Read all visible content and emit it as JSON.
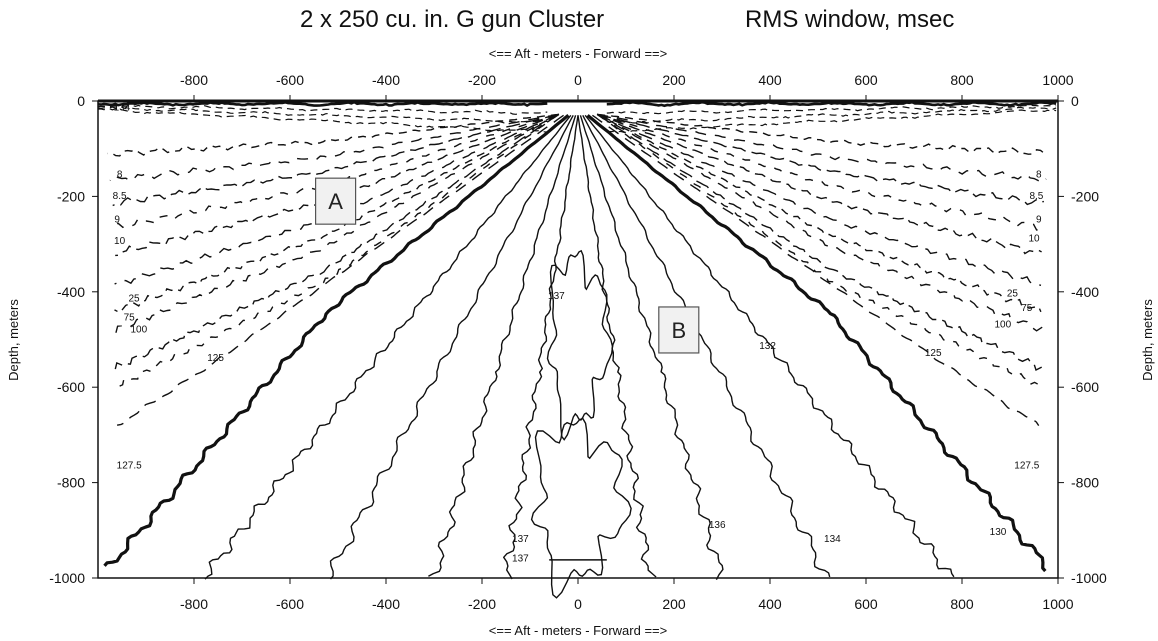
{
  "chart_data": {
    "type": "contour",
    "title": "2 x 250 cu. in.  G gun Cluster",
    "subtitle": "RMS window, msec",
    "xlabel": "<==  Aft  - meters -  Forward  ==>",
    "ylabel": "Depth, meters",
    "xlim": [
      -1000,
      1000
    ],
    "ylim": [
      -1000,
      0
    ],
    "xticks": [
      "-800",
      "-600",
      "-400",
      "-200",
      "0",
      "200",
      "400",
      "600",
      "800",
      "1000"
    ],
    "yticks": [
      "0",
      "-200",
      "-400",
      "-600",
      "-800",
      "-1000"
    ],
    "grid": false,
    "contour_labels": [
      {
        "text": "134",
        "x": -950,
        "y": -20
      },
      {
        "text": "8",
        "x": -955,
        "y": -160
      },
      {
        "text": "8.5",
        "x": -955,
        "y": -205
      },
      {
        "text": "9",
        "x": -960,
        "y": -255
      },
      {
        "text": "10",
        "x": -955,
        "y": -300
      },
      {
        "text": "25",
        "x": -925,
        "y": -420
      },
      {
        "text": "75",
        "x": -935,
        "y": -460
      },
      {
        "text": "100",
        "x": -915,
        "y": -485
      },
      {
        "text": "125",
        "x": -755,
        "y": -545
      },
      {
        "text": "127.5",
        "x": -935,
        "y": -770
      },
      {
        "text": "137",
        "x": -45,
        "y": -415
      },
      {
        "text": "137",
        "x": -120,
        "y": -925
      },
      {
        "text": "137",
        "x": -120,
        "y": -965
      },
      {
        "text": "132",
        "x": 395,
        "y": -520
      },
      {
        "text": "136",
        "x": 290,
        "y": -895
      },
      {
        "text": "134",
        "x": 530,
        "y": -925
      },
      {
        "text": "130",
        "x": 875,
        "y": -910
      },
      {
        "text": "8",
        "x": 960,
        "y": -160
      },
      {
        "text": "8.5",
        "x": 955,
        "y": -205
      },
      {
        "text": "9",
        "x": 960,
        "y": -255
      },
      {
        "text": "10",
        "x": 950,
        "y": -295
      },
      {
        "text": "25",
        "x": 905,
        "y": -410
      },
      {
        "text": "75",
        "x": 935,
        "y": -440
      },
      {
        "text": "100",
        "x": 885,
        "y": -475
      },
      {
        "text": "125",
        "x": 740,
        "y": -535
      },
      {
        "text": "127.5",
        "x": 935,
        "y": -770
      }
    ],
    "annotations": [
      {
        "text": "A",
        "x": -505,
        "y": -210
      },
      {
        "text": "B",
        "x": 210,
        "y": -480
      }
    ],
    "series": [
      {
        "level": "125",
        "style": "dashed",
        "points": [
          [
            -30,
            -30
          ],
          [
            -760,
            -550
          ],
          [
            -960,
            -680
          ]
        ]
      },
      {
        "level": "127.5",
        "style": "solid-bold",
        "points": [
          [
            -20,
            -30
          ],
          [
            -520,
            -440
          ],
          [
            -980,
            -980
          ]
        ]
      },
      {
        "level": "130",
        "style": "solid",
        "points": [
          [
            -15,
            -30
          ],
          [
            -420,
            -540
          ],
          [
            -780,
            -1000
          ]
        ]
      },
      {
        "level": "132",
        "style": "solid",
        "points": [
          [
            -10,
            -30
          ],
          [
            -290,
            -560
          ],
          [
            -520,
            -1000
          ]
        ]
      },
      {
        "level": "134",
        "style": "solid",
        "points": [
          [
            -5,
            -30
          ],
          [
            -170,
            -560
          ],
          [
            -300,
            -1000
          ]
        ]
      },
      {
        "level": "136",
        "style": "solid",
        "points": [
          [
            0,
            -30
          ],
          [
            -80,
            -560
          ],
          [
            -150,
            -1000
          ]
        ]
      },
      {
        "level": "125",
        "style": "dashed",
        "points": [
          [
            30,
            -30
          ],
          [
            760,
            -550
          ],
          [
            960,
            -680
          ]
        ]
      },
      {
        "level": "127.5",
        "style": "solid-bold",
        "points": [
          [
            20,
            -30
          ],
          [
            520,
            -440
          ],
          [
            980,
            -980
          ]
        ]
      },
      {
        "level": "130",
        "style": "solid",
        "points": [
          [
            15,
            -30
          ],
          [
            420,
            -540
          ],
          [
            780,
            -1000
          ]
        ]
      },
      {
        "level": "132",
        "style": "solid",
        "points": [
          [
            10,
            -30
          ],
          [
            290,
            -560
          ],
          [
            520,
            -1000
          ]
        ]
      },
      {
        "level": "134",
        "style": "solid",
        "points": [
          [
            5,
            -30
          ],
          [
            170,
            -560
          ],
          [
            300,
            -1000
          ]
        ]
      },
      {
        "level": "136",
        "style": "solid",
        "points": [
          [
            0,
            -30
          ],
          [
            80,
            -560
          ],
          [
            150,
            -1000
          ]
        ]
      }
    ]
  }
}
